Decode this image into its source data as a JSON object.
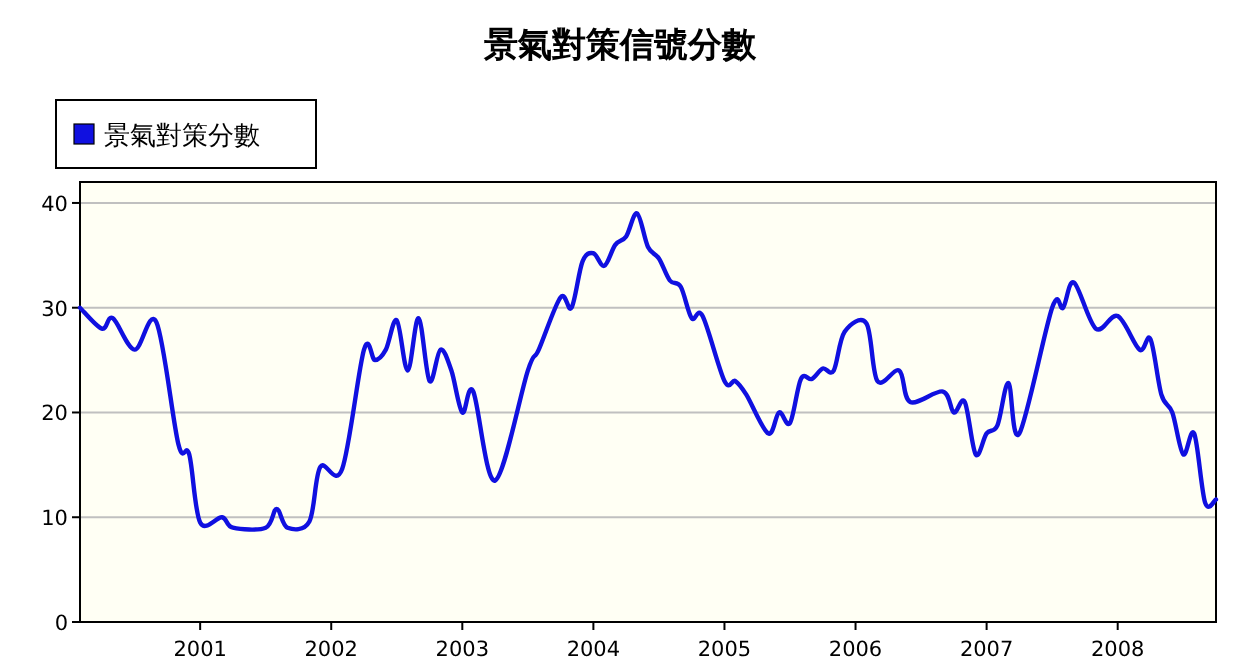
{
  "chart_data": {
    "type": "line",
    "title": "景氣對策信號分數",
    "x": [
      "2000-02",
      "2000-04",
      "2000-05",
      "2000-07",
      "2000-09",
      "2000-11",
      "2000-12",
      "2001-01",
      "2001-03",
      "2001-04",
      "2001-07",
      "2001-08",
      "2001-09",
      "2001-11",
      "2001-12",
      "2002-02",
      "2002-04",
      "2002-05",
      "2002-06",
      "2002-07",
      "2002-08",
      "2002-09",
      "2002-10",
      "2002-11",
      "2002-12",
      "2003-01",
      "2003-02",
      "2003-04",
      "2003-07",
      "2003-08",
      "2003-10",
      "2003-11",
      "2003-12",
      "2004-01",
      "2004-02",
      "2004-03",
      "2004-04",
      "2004-05",
      "2004-06",
      "2004-07",
      "2004-08",
      "2004-09",
      "2004-10",
      "2004-11",
      "2005-01",
      "2005-02",
      "2005-03",
      "2005-05",
      "2005-06",
      "2005-07",
      "2005-08",
      "2005-09",
      "2005-10",
      "2005-11",
      "2005-12",
      "2006-02",
      "2006-03",
      "2006-05",
      "2006-06",
      "2006-09",
      "2006-10",
      "2006-11",
      "2006-12",
      "2007-01",
      "2007-02",
      "2007-03",
      "2007-04",
      "2007-07",
      "2007-08",
      "2007-09",
      "2007-11",
      "2008-01",
      "2008-03",
      "2008-04",
      "2008-05",
      "2008-06",
      "2008-07",
      "2008-08",
      "2008-09",
      "2008-10"
    ],
    "series": [
      {
        "name": "景氣對策分數",
        "color": "#1010e0",
        "values": [
          30,
          28,
          29,
          26,
          28.6,
          17,
          16,
          9.5,
          10,
          9,
          9,
          10.8,
          9,
          9.6,
          14.8,
          14.6,
          26,
          25,
          26,
          28.8,
          24,
          29,
          23,
          26,
          24,
          20,
          22,
          13.5,
          24,
          26,
          31,
          30,
          34.4,
          35.2,
          34,
          36,
          36.8,
          39,
          35.8,
          34.7,
          32.6,
          32,
          29,
          29.2,
          23,
          23,
          21.7,
          18,
          20,
          19,
          23.2,
          23.2,
          24.2,
          24,
          27.7,
          28.5,
          23,
          24,
          21,
          22,
          20,
          21,
          16,
          18,
          18.8,
          22.8,
          18,
          30,
          30,
          32.4,
          28,
          29.2,
          26,
          27,
          21.7,
          20,
          16,
          18,
          11.4,
          11.7
        ]
      }
    ],
    "xlim": [
      "2000-02",
      "2008-10"
    ],
    "xticks": [
      {
        "value": "2001-01",
        "label": "2001"
      },
      {
        "value": "2002-01",
        "label": "2002"
      },
      {
        "value": "2003-01",
        "label": "2003"
      },
      {
        "value": "2004-01",
        "label": "2004"
      },
      {
        "value": "2005-01",
        "label": "2005"
      },
      {
        "value": "2006-01",
        "label": "2006"
      },
      {
        "value": "2007-01",
        "label": "2007"
      },
      {
        "value": "2008-01",
        "label": "2008"
      }
    ],
    "ylim": [
      0,
      42
    ],
    "yticks": [
      0,
      10,
      20,
      30,
      40
    ],
    "grid": "y",
    "legend": "top left",
    "marker": "none",
    "line_style": "solid"
  }
}
